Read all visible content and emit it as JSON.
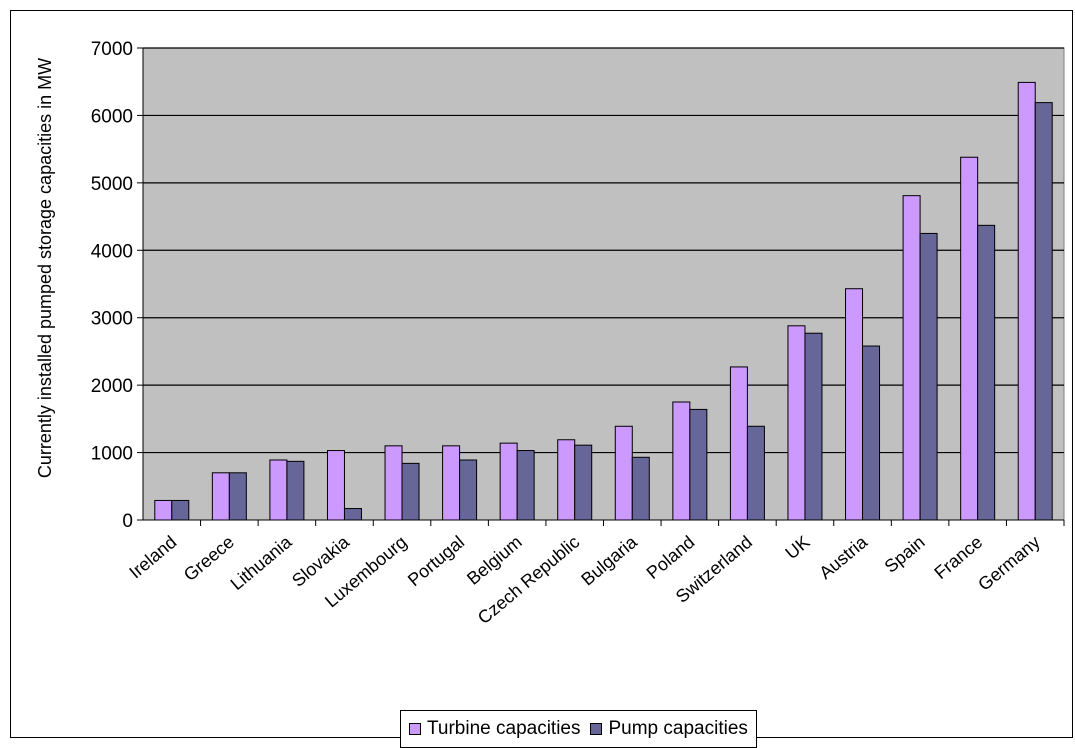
{
  "chart_data": {
    "type": "bar",
    "title": "",
    "xlabel": "",
    "ylabel": "Currently installed pumped storage capacities in MW",
    "ylim": [
      0,
      7000
    ],
    "yticks": [
      0,
      1000,
      2000,
      3000,
      4000,
      5000,
      6000,
      7000
    ],
    "grid": "horizontal",
    "background": "#c0c0c0",
    "legend_position": "bottom",
    "categories": [
      "Ireland",
      "Greece",
      "Lithuania",
      "Slovakia",
      "Luxembourg",
      "Portugal",
      "Belgium",
      "Czech Republic",
      "Bulgaria",
      "Poland",
      "Switzerland",
      "UK",
      "Austria",
      "Spain",
      "France",
      "Germany"
    ],
    "series": [
      {
        "name": "Turbine capacities",
        "color": "#cc99ff",
        "values": [
          290,
          700,
          890,
          1030,
          1100,
          1100,
          1140,
          1190,
          1390,
          1750,
          2270,
          2880,
          3430,
          4810,
          5380,
          6490
        ]
      },
      {
        "name": "Pump capacities",
        "color": "#666699",
        "values": [
          290,
          700,
          870,
          170,
          840,
          890,
          1030,
          1110,
          930,
          1640,
          1390,
          2770,
          2580,
          4250,
          4370,
          6190
        ]
      }
    ]
  }
}
